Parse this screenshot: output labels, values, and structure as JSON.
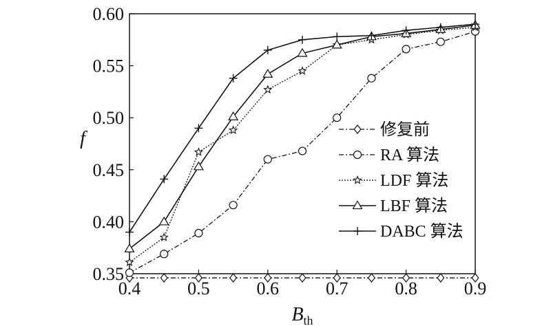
{
  "chart_data": {
    "type": "line",
    "xlabel": "B",
    "xlabel_sub": "th",
    "ylabel": "f",
    "xlim": [
      0.4,
      0.9
    ],
    "ylim": [
      0.35,
      0.6
    ],
    "x_ticks": [
      "0.4",
      "0.5",
      "0.6",
      "0.7",
      "0.8",
      "0.9"
    ],
    "y_ticks": [
      "0.35",
      "0.40",
      "0.45",
      "0.50",
      "0.55",
      "0.60"
    ],
    "grid": false,
    "legend_position": "right",
    "x": [
      0.4,
      0.45,
      0.5,
      0.55,
      0.6,
      0.65,
      0.7,
      0.75,
      0.8,
      0.85,
      0.9
    ],
    "series": [
      {
        "name": "修复前",
        "marker": "diamond",
        "dash": "dashdot",
        "values": [
          0.346,
          0.346,
          0.346,
          0.346,
          0.346,
          0.346,
          0.346,
          0.346,
          0.346,
          0.346,
          0.346
        ]
      },
      {
        "name": "RA 算法",
        "marker": "circle",
        "dash": "dashdot",
        "values": [
          0.351,
          0.369,
          0.389,
          0.416,
          0.46,
          0.468,
          0.5,
          0.538,
          0.566,
          0.573,
          0.583
        ]
      },
      {
        "name": "LDF 算法",
        "marker": "star",
        "dash": "dotted",
        "values": [
          0.361,
          0.385,
          0.467,
          0.488,
          0.527,
          0.545,
          0.57,
          0.575,
          0.58,
          0.584,
          0.587
        ]
      },
      {
        "name": "LBF 算法",
        "marker": "triangle",
        "dash": "solid",
        "values": [
          0.374,
          0.4,
          0.453,
          0.501,
          0.542,
          0.562,
          0.57,
          0.578,
          0.581,
          0.585,
          0.589
        ]
      },
      {
        "name": "DABC 算法",
        "marker": "plus",
        "dash": "solid",
        "values": [
          0.39,
          0.441,
          0.49,
          0.538,
          0.565,
          0.575,
          0.578,
          0.579,
          0.584,
          0.587,
          0.59
        ]
      }
    ]
  }
}
